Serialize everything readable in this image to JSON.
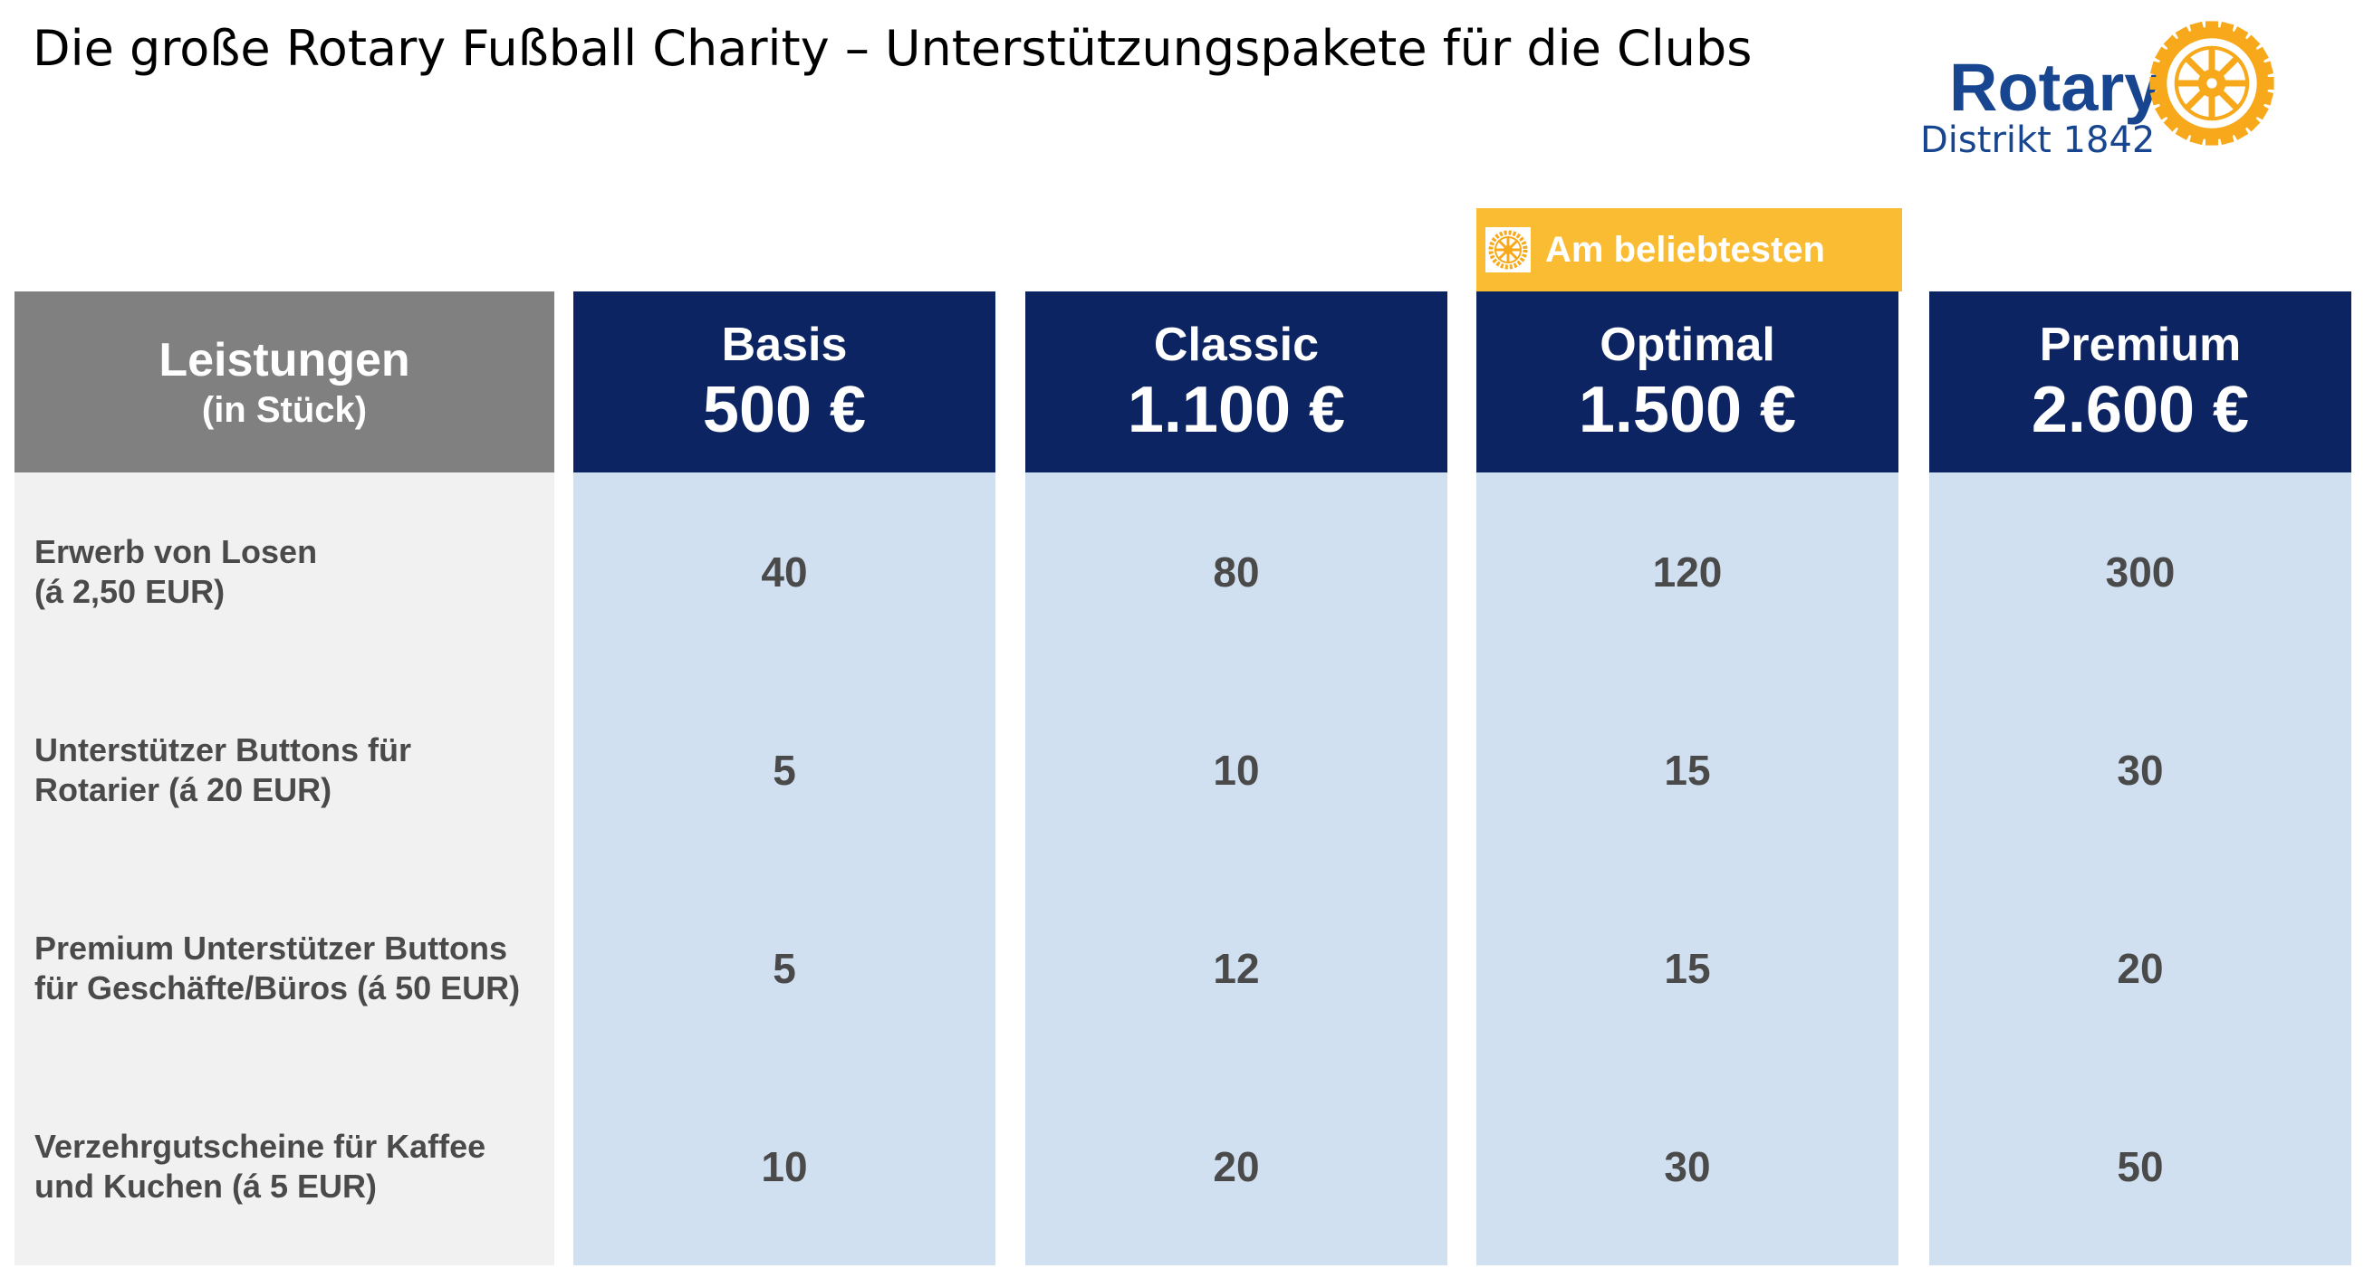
{
  "title": "Die große Rotary Fußball Charity – Unterstützungspakete für die Clubs",
  "logo": {
    "wordmark": "Rotary",
    "subtitle": "Distrikt 1842",
    "icon": "rotary-wheel-icon",
    "wordmark_color": "#17458f",
    "wheel_color": "#f7a81b"
  },
  "colors": {
    "header_navy": "#0c2461",
    "header_grey": "#808080",
    "plan_body": "#d1e0f0",
    "label_body": "#f1f1f1",
    "badge": "#f9bc32"
  },
  "badge": {
    "label": "Am beliebtesten",
    "icon": "rotary-wheel-icon"
  },
  "table": {
    "label_header": {
      "title": "Leistungen",
      "subtitle": "(in Stück)"
    },
    "rows": [
      {
        "label": "Erwerb von Losen\n(á 2,50 EUR)"
      },
      {
        "label": "Unterstützer Buttons für\nRotarier (á 20 EUR)"
      },
      {
        "label": "Premium Unterstützer Buttons\nfür Geschäfte/Büros (á 50 EUR)"
      },
      {
        "label": "Verzehrgutscheine für Kaffee\nund Kuchen (á 5 EUR)"
      }
    ],
    "plans": [
      {
        "name": "Basis",
        "price": "500 €",
        "values": [
          "40",
          "5",
          "5",
          "10"
        ]
      },
      {
        "name": "Classic",
        "price": "1.100 €",
        "values": [
          "80",
          "10",
          "12",
          "20"
        ]
      },
      {
        "name": "Optimal",
        "price": "1.500 €",
        "values": [
          "120",
          "15",
          "15",
          "30"
        ]
      },
      {
        "name": "Premium",
        "price": "2.600 €",
        "values": [
          "300",
          "30",
          "20",
          "50"
        ]
      }
    ]
  }
}
